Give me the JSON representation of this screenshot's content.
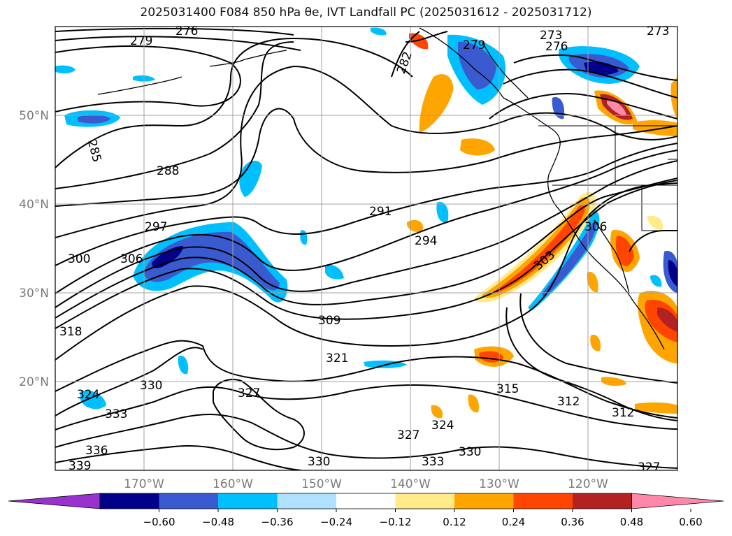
{
  "title": "2025031400 F084 850 hPa θe, IVT Landfall PC (2025031612 - 2025031712)",
  "map": {
    "lon_ticks": [
      "170°W",
      "160°W",
      "150°W",
      "140°W",
      "130°W",
      "120°W"
    ],
    "lat_ticks": [
      "50°N",
      "40°N",
      "30°N",
      "20°N"
    ],
    "contour_labels": [
      "276",
      "279",
      "282",
      "279",
      "273",
      "276",
      "273",
      "285",
      "288",
      "291",
      "294",
      "297",
      "300",
      "306",
      "303",
      "306",
      "309",
      "318",
      "321",
      "324",
      "330",
      "327",
      "315",
      "312",
      "312",
      "324",
      "327",
      "330",
      "333",
      "336",
      "339",
      "333",
      "330",
      "327"
    ]
  },
  "colorbar": {
    "colors": [
      "#9932cc",
      "#00008b",
      "#3a5bd0",
      "#00bfff",
      "#b0e0ff",
      "#ffffff",
      "#ffeb8a",
      "#ffa500",
      "#ff4500",
      "#b22222",
      "#ff88aa"
    ],
    "ticks": [
      "−0.60",
      "−0.48",
      "−0.36",
      "−0.24",
      "−0.12",
      "0.12",
      "0.24",
      "0.36",
      "0.48",
      "0.60"
    ]
  }
}
